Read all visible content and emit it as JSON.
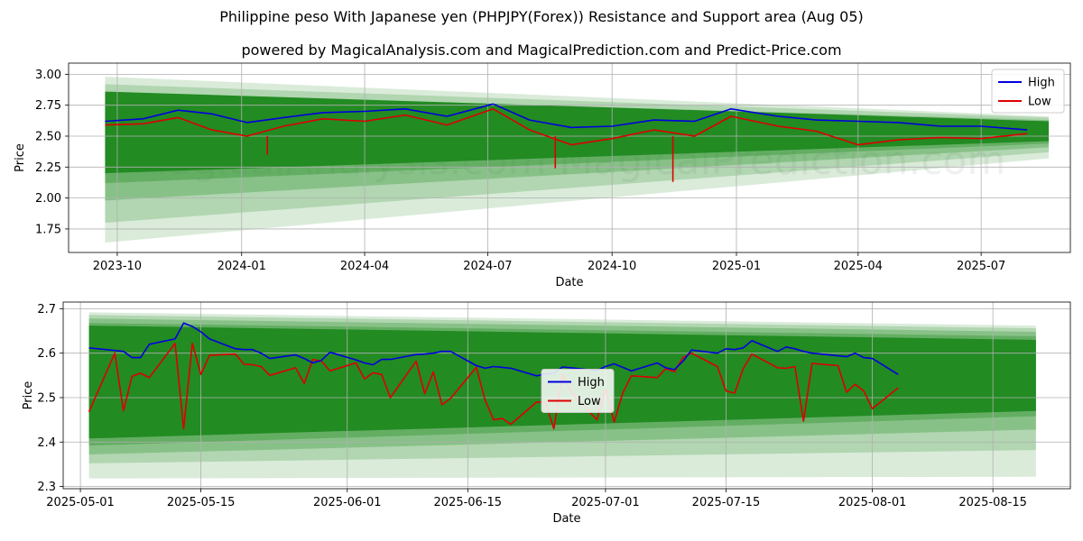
{
  "header": {
    "title": "Philippine peso With Japanese yen (PHPJPY(Forex)) Resistance and Support area (Aug 05)",
    "subtitle": "powered by MagicalAnalysis.com and MagicalPrediction.com and Predict-Price.com"
  },
  "watermark": "MagicalAnalysis.com    MagicalPrediction.com",
  "colors": {
    "high": "#0000dd",
    "low": "#dd0000",
    "band": "#228b22"
  },
  "chart_data": [
    {
      "type": "line",
      "xlabel": "Date",
      "ylabel": "Price",
      "ylim": [
        1.56,
        3.09
      ],
      "yticks": [
        1.75,
        2.0,
        2.25,
        2.5,
        2.75,
        3.0
      ],
      "ytick_labels": [
        "1.75",
        "2.00",
        "2.25",
        "2.50",
        "2.75",
        "3.00"
      ],
      "xticks": [
        "2023-10-01",
        "2024-01-01",
        "2024-04-01",
        "2024-07-01",
        "2024-10-01",
        "2025-01-01",
        "2025-04-01",
        "2025-07-01"
      ],
      "xtick_labels": [
        "2023-10",
        "2024-01",
        "2024-04",
        "2024-07",
        "2024-10",
        "2025-01",
        "2025-04",
        "2025-07"
      ],
      "legend": {
        "placement": "top-right",
        "entries": [
          "High",
          "Low"
        ]
      },
      "grid": true,
      "x_range": [
        "2023-08-26",
        "2025-09-05"
      ],
      "series": [
        {
          "name": "High",
          "x": [
            "2023-09-22",
            "2023-10-20",
            "2023-11-15",
            "2023-12-10",
            "2024-01-05",
            "2024-02-01",
            "2024-03-01",
            "2024-04-01",
            "2024-05-01",
            "2024-06-01",
            "2024-07-05",
            "2024-08-01",
            "2024-09-01",
            "2024-10-01",
            "2024-11-01",
            "2024-12-01",
            "2024-12-28",
            "2025-02-01",
            "2025-03-01",
            "2025-04-01",
            "2025-05-01",
            "2025-06-01",
            "2025-07-01",
            "2025-08-04"
          ],
          "values": [
            2.62,
            2.64,
            2.71,
            2.68,
            2.61,
            2.65,
            2.69,
            2.7,
            2.72,
            2.66,
            2.76,
            2.63,
            2.57,
            2.58,
            2.63,
            2.62,
            2.72,
            2.66,
            2.63,
            2.62,
            2.61,
            2.58,
            2.58,
            2.55
          ]
        },
        {
          "name": "Low",
          "x": [
            "2023-09-22",
            "2023-10-20",
            "2023-11-15",
            "2023-12-10",
            "2024-01-05",
            "2024-02-01",
            "2024-03-01",
            "2024-04-01",
            "2024-05-01",
            "2024-06-01",
            "2024-07-05",
            "2024-08-01",
            "2024-09-01",
            "2024-10-01",
            "2024-11-01",
            "2024-12-01",
            "2024-12-28",
            "2025-02-01",
            "2025-03-01",
            "2025-04-01",
            "2025-05-01",
            "2025-06-01",
            "2025-07-01",
            "2025-08-04"
          ],
          "values": [
            2.59,
            2.6,
            2.65,
            2.55,
            2.5,
            2.58,
            2.64,
            2.62,
            2.67,
            2.59,
            2.72,
            2.55,
            2.43,
            2.48,
            2.55,
            2.5,
            2.66,
            2.58,
            2.54,
            2.43,
            2.47,
            2.49,
            2.48,
            2.52
          ]
        }
      ],
      "bands": {
        "x_start": "2023-09-22",
        "x_end": "2025-08-20",
        "upper_start": [
          2.98,
          2.92,
          2.85,
          2.78
        ],
        "lower_start": [
          1.64,
          1.8,
          1.98,
          2.12
        ],
        "upper_end": [
          2.66,
          2.65,
          2.63,
          2.61
        ],
        "lower_end": [
          2.32,
          2.37,
          2.41,
          2.44
        ],
        "core_upper": [
          2.86,
          2.62
        ],
        "core_lower": [
          2.2,
          2.46
        ],
        "extremes": [
          {
            "x": "2024-01-20",
            "value": 2.35
          },
          {
            "x": "2024-08-20",
            "value": 2.24
          },
          {
            "x": "2024-11-15",
            "value": 2.13
          }
        ]
      }
    },
    {
      "type": "line",
      "xlabel": "Date",
      "ylabel": "Price",
      "ylim": [
        2.295,
        2.715
      ],
      "yticks": [
        2.3,
        2.4,
        2.5,
        2.6,
        2.7
      ],
      "ytick_labels": [
        "2.3",
        "2.4",
        "2.5",
        "2.6",
        "2.7"
      ],
      "xticks": [
        "2025-05-01",
        "2025-05-15",
        "2025-06-01",
        "2025-06-15",
        "2025-07-01",
        "2025-07-15",
        "2025-08-01",
        "2025-08-15"
      ],
      "xtick_labels": [
        "2025-05-01",
        "2025-05-15",
        "2025-06-01",
        "2025-06-15",
        "2025-07-01",
        "2025-07-15",
        "2025-08-01",
        "2025-08-15"
      ],
      "legend": {
        "placement": "center",
        "entries": [
          "High",
          "Low"
        ]
      },
      "grid": true,
      "x_range": [
        "2025-04-29",
        "2025-08-24"
      ],
      "series": [
        {
          "name": "High",
          "x": [
            "2025-05-02",
            "2025-05-05",
            "2025-05-06",
            "2025-05-07",
            "2025-05-08",
            "2025-05-09",
            "2025-05-12",
            "2025-05-13",
            "2025-05-14",
            "2025-05-15",
            "2025-05-16",
            "2025-05-19",
            "2025-05-20",
            "2025-05-21",
            "2025-05-22",
            "2025-05-23",
            "2025-05-26",
            "2025-05-27",
            "2025-05-28",
            "2025-05-29",
            "2025-05-30",
            "2025-06-02",
            "2025-06-03",
            "2025-06-04",
            "2025-06-05",
            "2025-06-06",
            "2025-06-09",
            "2025-06-10",
            "2025-06-11",
            "2025-06-12",
            "2025-06-13",
            "2025-06-16",
            "2025-06-17",
            "2025-06-18",
            "2025-06-19",
            "2025-06-20",
            "2025-06-23",
            "2025-06-24",
            "2025-06-25",
            "2025-06-26",
            "2025-06-27",
            "2025-06-30",
            "2025-07-01",
            "2025-07-02",
            "2025-07-03",
            "2025-07-04",
            "2025-07-07",
            "2025-07-08",
            "2025-07-09",
            "2025-07-10",
            "2025-07-11",
            "2025-07-14",
            "2025-07-15",
            "2025-07-16",
            "2025-07-17",
            "2025-07-18",
            "2025-07-21",
            "2025-07-22",
            "2025-07-23",
            "2025-07-24",
            "2025-07-25",
            "2025-07-28",
            "2025-07-29",
            "2025-07-30",
            "2025-07-31",
            "2025-08-01",
            "2025-08-04"
          ],
          "values": [
            2.612,
            2.606,
            2.604,
            2.59,
            2.59,
            2.62,
            2.632,
            2.668,
            2.66,
            2.648,
            2.632,
            2.61,
            2.608,
            2.608,
            2.6,
            2.588,
            2.596,
            2.588,
            2.578,
            2.584,
            2.602,
            2.585,
            2.578,
            2.574,
            2.586,
            2.586,
            2.597,
            2.598,
            2.6,
            2.604,
            2.604,
            2.572,
            2.566,
            2.57,
            2.568,
            2.566,
            2.549,
            2.553,
            2.555,
            2.569,
            2.567,
            2.561,
            2.57,
            2.576,
            2.568,
            2.56,
            2.578,
            2.567,
            2.563,
            2.582,
            2.607,
            2.6,
            2.61,
            2.608,
            2.612,
            2.628,
            2.604,
            2.614,
            2.61,
            2.604,
            2.6,
            2.594,
            2.592,
            2.6,
            2.59,
            2.588,
            2.552
          ]
        },
        {
          "name": "Low",
          "x": [
            "2025-05-02",
            "2025-05-05",
            "2025-05-06",
            "2025-05-07",
            "2025-05-08",
            "2025-05-09",
            "2025-05-12",
            "2025-05-13",
            "2025-05-14",
            "2025-05-15",
            "2025-05-16",
            "2025-05-19",
            "2025-05-20",
            "2025-05-21",
            "2025-05-22",
            "2025-05-23",
            "2025-05-26",
            "2025-05-27",
            "2025-05-28",
            "2025-05-29",
            "2025-05-30",
            "2025-06-02",
            "2025-06-03",
            "2025-06-04",
            "2025-06-05",
            "2025-06-06",
            "2025-06-09",
            "2025-06-10",
            "2025-06-11",
            "2025-06-12",
            "2025-06-13",
            "2025-06-16",
            "2025-06-17",
            "2025-06-18",
            "2025-06-19",
            "2025-06-20",
            "2025-06-23",
            "2025-06-24",
            "2025-06-25",
            "2025-06-26",
            "2025-06-27",
            "2025-06-30",
            "2025-07-01",
            "2025-07-02",
            "2025-07-03",
            "2025-07-04",
            "2025-07-07",
            "2025-07-08",
            "2025-07-09",
            "2025-07-10",
            "2025-07-11",
            "2025-07-14",
            "2025-07-15",
            "2025-07-16",
            "2025-07-17",
            "2025-07-18",
            "2025-07-21",
            "2025-07-22",
            "2025-07-23",
            "2025-07-24",
            "2025-07-25",
            "2025-07-28",
            "2025-07-29",
            "2025-07-30",
            "2025-07-31",
            "2025-08-01",
            "2025-08-04"
          ],
          "values": [
            2.468,
            2.6,
            2.47,
            2.548,
            2.555,
            2.545,
            2.622,
            2.43,
            2.622,
            2.552,
            2.595,
            2.598,
            2.575,
            2.574,
            2.57,
            2.55,
            2.567,
            2.532,
            2.586,
            2.582,
            2.56,
            2.578,
            2.542,
            2.556,
            2.552,
            2.5,
            2.582,
            2.509,
            2.558,
            2.484,
            2.498,
            2.568,
            2.495,
            2.45,
            2.453,
            2.44,
            2.49,
            2.49,
            2.43,
            2.552,
            2.512,
            2.45,
            2.519,
            2.445,
            2.51,
            2.549,
            2.545,
            2.565,
            2.558,
            2.59,
            2.6,
            2.57,
            2.515,
            2.51,
            2.565,
            2.598,
            2.567,
            2.566,
            2.57,
            2.447,
            2.577,
            2.572,
            2.512,
            2.53,
            2.515,
            2.475,
            2.522
          ]
        }
      ],
      "bands": {
        "x_start": "2025-05-02",
        "x_end": "2025-08-20",
        "upper_start": [
          2.692,
          2.686,
          2.678,
          2.668
        ],
        "lower_start": [
          2.318,
          2.352,
          2.372,
          2.392
        ],
        "upper_end": [
          2.662,
          2.656,
          2.648,
          2.638
        ],
        "lower_end": [
          2.322,
          2.382,
          2.428,
          2.458
        ],
        "core_upper": [
          2.662,
          2.63
        ],
        "core_lower": [
          2.408,
          2.47
        ]
      }
    }
  ]
}
